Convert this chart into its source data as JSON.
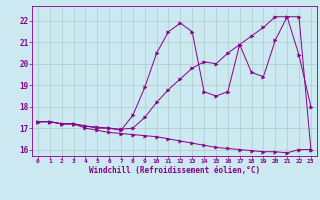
{
  "xlabel": "Windchill (Refroidissement éolien,°C)",
  "background_color": "#cce8f0",
  "grid_color": "#aacccc",
  "line_color": "#880088",
  "xlim": [
    -0.5,
    23.5
  ],
  "ylim": [
    15.7,
    22.7
  ],
  "yticks": [
    16,
    17,
    18,
    19,
    20,
    21,
    22
  ],
  "xticks": [
    0,
    1,
    2,
    3,
    4,
    5,
    6,
    7,
    8,
    9,
    10,
    11,
    12,
    13,
    14,
    15,
    16,
    17,
    18,
    19,
    20,
    21,
    22,
    23
  ],
  "line1_x": [
    0,
    1,
    2,
    3,
    4,
    5,
    6,
    7,
    8,
    9,
    10,
    11,
    12,
    13,
    14,
    15,
    16,
    17,
    18,
    19,
    20,
    21,
    22,
    23
  ],
  "line1_y": [
    17.3,
    17.3,
    17.2,
    17.2,
    17.0,
    16.9,
    16.8,
    16.75,
    16.7,
    16.65,
    16.6,
    16.5,
    16.4,
    16.3,
    16.2,
    16.1,
    16.05,
    16.0,
    15.95,
    15.9,
    15.9,
    15.85,
    16.0,
    16.0
  ],
  "line2_x": [
    0,
    1,
    2,
    3,
    4,
    5,
    6,
    7,
    8,
    9,
    10,
    11,
    12,
    13,
    14,
    15,
    16,
    17,
    18,
    19,
    20,
    21,
    22,
    23
  ],
  "line2_y": [
    17.3,
    17.3,
    17.2,
    17.2,
    17.1,
    17.05,
    17.0,
    16.9,
    17.6,
    18.9,
    20.5,
    21.5,
    21.9,
    21.5,
    18.7,
    18.5,
    18.7,
    20.9,
    19.6,
    19.4,
    21.1,
    22.2,
    20.4,
    18.0
  ],
  "line3_x": [
    0,
    1,
    2,
    3,
    4,
    5,
    6,
    7,
    8,
    9,
    10,
    11,
    12,
    13,
    14,
    15,
    16,
    17,
    18,
    19,
    20,
    21,
    22,
    23
  ],
  "line3_y": [
    17.3,
    17.3,
    17.2,
    17.2,
    17.1,
    17.0,
    17.0,
    16.95,
    17.0,
    17.5,
    18.2,
    18.8,
    19.3,
    19.8,
    20.1,
    20.0,
    20.5,
    20.9,
    21.3,
    21.7,
    22.2,
    22.2,
    22.2,
    16.0
  ]
}
